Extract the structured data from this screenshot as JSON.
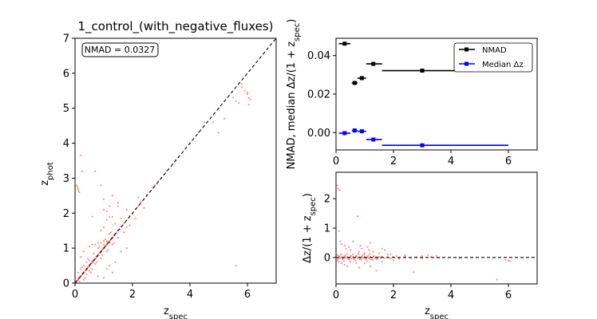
{
  "chart_data": [
    {
      "type": "scatter",
      "title": "1_control_(with_negative_fluxes)",
      "xlabel": "z_spec",
      "ylabel": "z_phot",
      "xlim": [
        0,
        7
      ],
      "ylim": [
        0,
        7
      ],
      "xticks": [
        0,
        2,
        4,
        6
      ],
      "yticks": [
        0,
        1,
        2,
        3,
        4,
        5,
        6,
        7
      ],
      "annotation": "NMAD = 0.0327",
      "reference_line": "y = x (dashed, black)",
      "point_color": "#ff0000",
      "points": [
        [
          0.05,
          0.06
        ],
        [
          0.08,
          0.07
        ],
        [
          0.1,
          0.12
        ],
        [
          0.12,
          0.1
        ],
        [
          0.15,
          0.16
        ],
        [
          0.18,
          0.17
        ],
        [
          0.2,
          0.21
        ],
        [
          0.22,
          0.2
        ],
        [
          0.25,
          0.26
        ],
        [
          0.28,
          0.27
        ],
        [
          0.3,
          0.31
        ],
        [
          0.32,
          0.3
        ],
        [
          0.35,
          0.36
        ],
        [
          0.38,
          0.37
        ],
        [
          0.4,
          0.41
        ],
        [
          0.42,
          0.4
        ],
        [
          0.45,
          0.46
        ],
        [
          0.48,
          0.47
        ],
        [
          0.5,
          0.5
        ],
        [
          0.52,
          0.53
        ],
        [
          0.55,
          0.56
        ],
        [
          0.58,
          0.57
        ],
        [
          0.6,
          0.61
        ],
        [
          0.62,
          0.6
        ],
        [
          0.65,
          0.66
        ],
        [
          0.68,
          0.67
        ],
        [
          0.7,
          0.71
        ],
        [
          0.72,
          0.7
        ],
        [
          0.75,
          0.76
        ],
        [
          0.78,
          0.77
        ],
        [
          0.8,
          0.81
        ],
        [
          0.82,
          0.8
        ],
        [
          0.85,
          0.86
        ],
        [
          0.88,
          0.87
        ],
        [
          0.9,
          0.91
        ],
        [
          0.92,
          0.9
        ],
        [
          0.95,
          0.96
        ],
        [
          0.98,
          0.97
        ],
        [
          1.0,
          1.01
        ],
        [
          1.02,
          1.0
        ],
        [
          1.05,
          1.06
        ],
        [
          1.08,
          1.07
        ],
        [
          1.1,
          1.11
        ],
        [
          1.12,
          1.1
        ],
        [
          1.15,
          1.16
        ],
        [
          1.18,
          1.17
        ],
        [
          1.2,
          1.21
        ],
        [
          1.22,
          1.2
        ],
        [
          1.25,
          1.26
        ],
        [
          1.28,
          1.27
        ],
        [
          1.3,
          1.31
        ],
        [
          1.32,
          1.3
        ],
        [
          1.35,
          1.36
        ],
        [
          1.38,
          1.37
        ],
        [
          1.4,
          1.42
        ],
        [
          1.45,
          1.44
        ],
        [
          1.5,
          1.52
        ],
        [
          1.55,
          1.53
        ],
        [
          1.6,
          1.62
        ],
        [
          1.7,
          1.71
        ],
        [
          1.8,
          1.8
        ],
        [
          1.9,
          1.92
        ],
        [
          2.0,
          2.0
        ],
        [
          2.1,
          2.12
        ],
        [
          2.2,
          2.2
        ],
        [
          2.3,
          2.32
        ],
        [
          2.4,
          2.4
        ],
        [
          2.5,
          2.52
        ],
        [
          2.6,
          2.6
        ],
        [
          2.7,
          2.72
        ],
        [
          2.8,
          2.8
        ],
        [
          2.9,
          2.92
        ],
        [
          3.0,
          3.0
        ],
        [
          3.1,
          3.1
        ],
        [
          3.2,
          3.22
        ],
        [
          3.4,
          3.4
        ],
        [
          3.5,
          3.52
        ],
        [
          3.6,
          3.6
        ],
        [
          4.0,
          4.0
        ],
        [
          4.3,
          4.32
        ],
        [
          0.3,
          0.5
        ],
        [
          0.5,
          0.65
        ],
        [
          0.6,
          0.4
        ],
        [
          0.7,
          0.55
        ],
        [
          0.8,
          1.0
        ],
        [
          0.9,
          0.7
        ],
        [
          1.0,
          1.2
        ],
        [
          1.1,
          0.9
        ],
        [
          1.2,
          1.4
        ],
        [
          1.3,
          1.1
        ],
        [
          0.4,
          0.25
        ],
        [
          0.5,
          0.35
        ],
        [
          0.65,
          0.85
        ],
        [
          0.75,
          0.6
        ],
        [
          0.85,
          1.05
        ],
        [
          0.95,
          0.8
        ],
        [
          1.05,
          1.25
        ],
        [
          1.15,
          0.95
        ],
        [
          1.25,
          1.45
        ],
        [
          1.35,
          1.15
        ],
        [
          0.6,
          1.1
        ],
        [
          0.8,
          1.15
        ],
        [
          1.0,
          1.1
        ],
        [
          1.2,
          1.15
        ],
        [
          0.7,
          1.1
        ],
        [
          0.9,
          1.15
        ],
        [
          1.1,
          1.2
        ],
        [
          0.5,
          1.05
        ],
        [
          0.4,
          0.6
        ],
        [
          0.3,
          0.1
        ],
        [
          0.2,
          0.4
        ],
        [
          0.1,
          0.3
        ],
        [
          0.15,
          0.05
        ],
        [
          0.25,
          0.45
        ],
        [
          0.35,
          0.15
        ],
        [
          0.45,
          0.7
        ],
        [
          0.55,
          0.3
        ],
        [
          1.4,
          1.7
        ],
        [
          1.5,
          1.3
        ],
        [
          1.6,
          1.85
        ],
        [
          1.7,
          1.45
        ],
        [
          1.8,
          2.1
        ],
        [
          1.9,
          1.65
        ],
        [
          2.1,
          1.85
        ],
        [
          2.2,
          2.45
        ],
        [
          2.4,
          2.15
        ],
        [
          1.0,
          1.6
        ],
        [
          1.1,
          1.8
        ],
        [
          1.3,
          1.9
        ],
        [
          0.9,
          1.5
        ],
        [
          0.6,
          1.9
        ],
        [
          1.0,
          2.1
        ],
        [
          1.2,
          2.2
        ],
        [
          1.5,
          2.3
        ],
        [
          1.1,
          2.05
        ],
        [
          0.8,
          0.2
        ],
        [
          1.0,
          0.15
        ],
        [
          1.2,
          0.5
        ],
        [
          1.4,
          0.6
        ],
        [
          1.6,
          0.9
        ],
        [
          1.1,
          0.4
        ],
        [
          1.8,
          1.0
        ],
        [
          1.3,
          0.3
        ],
        [
          0.2,
          0.75
        ],
        [
          0.3,
          0.9
        ],
        [
          0.05,
          2.8
        ],
        [
          0.1,
          2.7
        ],
        [
          0.15,
          2.6
        ],
        [
          0.08,
          2.75
        ],
        [
          0.12,
          2.65
        ],
        [
          0.2,
          3.65
        ],
        [
          0.25,
          3.2
        ],
        [
          0.7,
          3.2
        ],
        [
          1.2,
          1.9
        ],
        [
          1.3,
          2.5
        ],
        [
          1.0,
          2.4
        ],
        [
          0.9,
          2.8
        ],
        [
          1.5,
          2.2
        ],
        [
          1.8,
          1.6
        ],
        [
          5.0,
          4.3
        ],
        [
          5.0,
          5.0
        ],
        [
          5.2,
          4.7
        ],
        [
          5.5,
          5.3
        ],
        [
          5.6,
          5.2
        ],
        [
          5.8,
          5.6
        ],
        [
          5.9,
          5.5
        ],
        [
          6.0,
          5.4
        ],
        [
          6.05,
          5.3
        ],
        [
          6.1,
          5.25
        ],
        [
          6.0,
          5.45
        ],
        [
          6.05,
          5.1
        ],
        [
          5.7,
          5.15
        ],
        [
          5.6,
          0.5
        ],
        [
          5.8,
          5.7
        ],
        [
          4.5,
          4.6
        ],
        [
          4.8,
          4.6
        ]
      ]
    },
    {
      "type": "line",
      "xlabel": "",
      "ylabel": "NMAD, median Δz/(1 + z_spec)",
      "xlim": [
        0,
        7
      ],
      "ylim": [
        -0.009,
        0.049
      ],
      "xticks": [
        0,
        2,
        4,
        6
      ],
      "yticks": [
        0.0,
        0.02,
        0.04
      ],
      "legend_position": "top-right",
      "series": [
        {
          "name": "NMAD",
          "color": "#000000",
          "points": [
            {
              "x": 0.3,
              "y": 0.0462,
              "xmin": 0.1,
              "xmax": 0.5
            },
            {
              "x": 0.65,
              "y": 0.0258,
              "xmin": 0.55,
              "xmax": 0.75
            },
            {
              "x": 0.9,
              "y": 0.0283,
              "xmin": 0.75,
              "xmax": 1.05
            },
            {
              "x": 1.3,
              "y": 0.0357,
              "xmin": 1.05,
              "xmax": 1.6
            },
            {
              "x": 3.0,
              "y": 0.0322,
              "xmin": 1.6,
              "xmax": 6.0
            }
          ]
        },
        {
          "name": "Median Δz",
          "color": "#0000ff",
          "points": [
            {
              "x": 0.3,
              "y": -0.0003,
              "xmin": 0.1,
              "xmax": 0.5
            },
            {
              "x": 0.65,
              "y": 0.0011,
              "xmin": 0.55,
              "xmax": 0.75
            },
            {
              "x": 0.9,
              "y": 0.0007,
              "xmin": 0.75,
              "xmax": 1.05
            },
            {
              "x": 1.3,
              "y": -0.0036,
              "xmin": 1.05,
              "xmax": 1.6
            },
            {
              "x": 3.0,
              "y": -0.0066,
              "xmin": 1.6,
              "xmax": 6.0
            }
          ]
        }
      ]
    },
    {
      "type": "scatter",
      "xlabel": "z_spec",
      "ylabel": "Δz/(1 + z_spec)",
      "xlim": [
        0,
        7
      ],
      "ylim": [
        -0.9,
        2.9
      ],
      "xticks": [
        0,
        2,
        4,
        6
      ],
      "yticks": [
        0,
        1,
        2
      ],
      "reference_line": "y = 0 (dashed, black)",
      "point_color": "#ff0000",
      "points": [
        [
          0.05,
          2.45
        ],
        [
          0.08,
          2.35
        ],
        [
          0.12,
          2.3
        ],
        [
          0.1,
          0.9
        ],
        [
          0.15,
          0.55
        ],
        [
          0.2,
          0.45
        ],
        [
          0.3,
          0.4
        ],
        [
          0.35,
          0.3
        ],
        [
          0.45,
          0.35
        ],
        [
          0.5,
          0.25
        ],
        [
          0.8,
          0.2
        ],
        [
          0.85,
          0.4
        ],
        [
          0.9,
          0.3
        ],
        [
          1.1,
          0.35
        ],
        [
          1.2,
          0.5
        ],
        [
          1.0,
          0.15
        ],
        [
          0.75,
          1.4
        ],
        [
          0.6,
          0.55
        ],
        [
          1.15,
          0.25
        ],
        [
          1.3,
          0.2
        ],
        [
          1.5,
          0.15
        ],
        [
          1.6,
          0.3
        ],
        [
          1.7,
          0.25
        ],
        [
          1.8,
          0.1
        ],
        [
          1.9,
          0.12
        ],
        [
          2.1,
          0.05
        ],
        [
          2.4,
          0.08
        ],
        [
          3.0,
          0.05
        ],
        [
          3.2,
          0.08
        ],
        [
          3.5,
          0.05
        ],
        [
          0.05,
          -0.1
        ],
        [
          0.1,
          -0.15
        ],
        [
          0.2,
          -0.2
        ],
        [
          0.3,
          -0.25
        ],
        [
          0.4,
          -0.3
        ],
        [
          0.5,
          -0.15
        ],
        [
          0.7,
          -0.2
        ],
        [
          0.8,
          -0.35
        ],
        [
          1.0,
          -0.2
        ],
        [
          1.2,
          -0.3
        ],
        [
          1.4,
          -0.45
        ],
        [
          1.6,
          -0.15
        ],
        [
          2.0,
          -0.1
        ],
        [
          2.2,
          -0.05
        ],
        [
          2.7,
          -0.5
        ],
        [
          5.6,
          -0.75
        ],
        [
          6.0,
          -0.1
        ],
        [
          6.05,
          -0.12
        ],
        [
          5.9,
          -0.08
        ],
        [
          4.3,
          -0.02
        ],
        [
          0.1,
          0.02
        ],
        [
          0.15,
          -0.02
        ],
        [
          0.2,
          0.01
        ],
        [
          0.25,
          -0.03
        ],
        [
          0.3,
          0.03
        ],
        [
          0.35,
          -0.01
        ],
        [
          0.4,
          0.02
        ],
        [
          0.45,
          -0.02
        ],
        [
          0.5,
          0.01
        ],
        [
          0.55,
          -0.03
        ],
        [
          0.6,
          0.02
        ],
        [
          0.65,
          -0.01
        ],
        [
          0.7,
          0.03
        ],
        [
          0.75,
          -0.02
        ],
        [
          0.8,
          0.01
        ],
        [
          0.85,
          -0.03
        ],
        [
          0.9,
          0.02
        ],
        [
          0.95,
          -0.01
        ],
        [
          1.0,
          0.03
        ],
        [
          1.05,
          -0.02
        ],
        [
          1.1,
          0.01
        ],
        [
          1.15,
          -0.03
        ],
        [
          1.2,
          0.02
        ],
        [
          1.25,
          -0.01
        ],
        [
          1.3,
          0.03
        ],
        [
          1.35,
          -0.02
        ],
        [
          1.4,
          0.01
        ],
        [
          1.45,
          -0.03
        ],
        [
          1.5,
          0.02
        ],
        [
          1.55,
          -0.01
        ],
        [
          1.6,
          0.03
        ],
        [
          1.7,
          -0.02
        ],
        [
          1.8,
          0.01
        ],
        [
          1.9,
          -0.03
        ],
        [
          2.0,
          0.02
        ],
        [
          2.2,
          -0.01
        ],
        [
          2.4,
          0.03
        ],
        [
          2.6,
          -0.02
        ],
        [
          2.8,
          0.01
        ],
        [
          3.0,
          -0.03
        ],
        [
          3.3,
          0.02
        ],
        [
          3.6,
          -0.01
        ],
        [
          0.12,
          0.05
        ],
        [
          0.22,
          -0.06
        ],
        [
          0.32,
          0.07
        ],
        [
          0.42,
          -0.05
        ],
        [
          0.52,
          0.06
        ],
        [
          0.62,
          -0.07
        ],
        [
          0.72,
          0.05
        ],
        [
          0.82,
          -0.06
        ],
        [
          0.92,
          0.07
        ],
        [
          1.02,
          -0.05
        ],
        [
          1.12,
          0.06
        ],
        [
          1.22,
          -0.07
        ],
        [
          1.32,
          0.05
        ],
        [
          1.42,
          -0.06
        ],
        [
          0.18,
          0.1
        ],
        [
          0.28,
          -0.1
        ],
        [
          0.38,
          0.12
        ],
        [
          0.48,
          -0.08
        ],
        [
          0.58,
          0.1
        ],
        [
          0.68,
          -0.1
        ],
        [
          0.78,
          0.12
        ],
        [
          0.88,
          -0.08
        ],
        [
          0.98,
          0.1
        ],
        [
          1.08,
          -0.1
        ],
        [
          1.18,
          0.12
        ],
        [
          1.28,
          -0.08
        ],
        [
          0.05,
          0.08
        ],
        [
          0.07,
          -0.05
        ]
      ]
    }
  ]
}
